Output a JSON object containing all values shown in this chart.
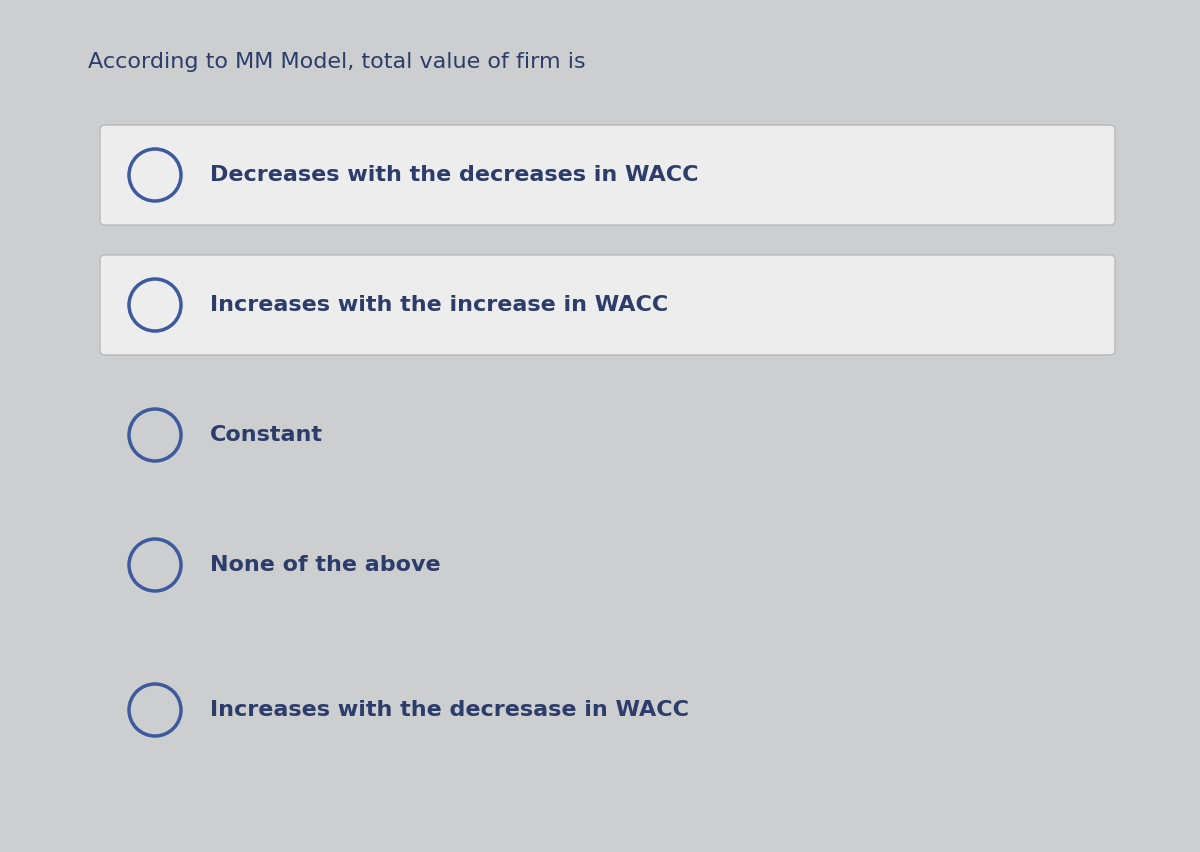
{
  "title": "According to MM Model, total value of firm is",
  "options": [
    "Decreases with the decreases in WACC",
    "Increases with the increase in WACC",
    "Constant",
    "None of the above",
    "Increases with the decresase in WACC"
  ],
  "has_box": [
    true,
    true,
    false,
    false,
    false
  ],
  "bg_color": "#cccecf",
  "box_color": "#ededee",
  "box_border_color": "#b8babb",
  "text_color": "#2d3d6b",
  "title_color": "#2d3d6b",
  "title_fontsize": 16,
  "option_fontsize": 16,
  "circle_color": "#3d5a9e",
  "circle_linewidth": 2.5,
  "fig_width": 12.0,
  "fig_height": 8.52
}
